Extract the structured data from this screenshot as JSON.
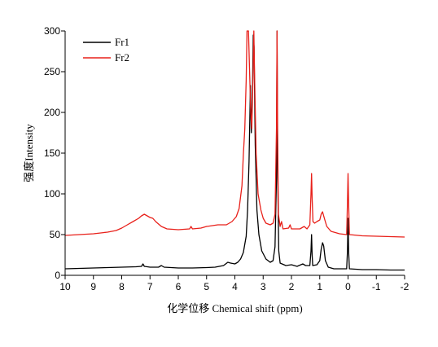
{
  "chart_data": {
    "type": "line",
    "title": "",
    "xlabel": "化学位移 Chemical shift (ppm)",
    "ylabel": "强度Intensity",
    "x_reversed": true,
    "xlim": [
      10,
      -2
    ],
    "ylim": [
      0,
      300
    ],
    "xticks": [
      "10",
      "9",
      "8",
      "7",
      "6",
      "5",
      "4",
      "3",
      "2",
      "1",
      "0",
      "-1",
      "-2"
    ],
    "yticks": [
      "0",
      "50",
      "100",
      "150",
      "200",
      "250",
      "300"
    ],
    "grid": false,
    "legend_position": "top-left",
    "series": [
      {
        "name": "Fr1",
        "color": "#000000",
        "points": [
          [
            10.0,
            8
          ],
          [
            9.5,
            8.5
          ],
          [
            9.0,
            9
          ],
          [
            8.5,
            9.5
          ],
          [
            8.0,
            10
          ],
          [
            7.5,
            10.5
          ],
          [
            7.3,
            11
          ],
          [
            7.25,
            14
          ],
          [
            7.2,
            11
          ],
          [
            7.0,
            10
          ],
          [
            6.7,
            10
          ],
          [
            6.6,
            12
          ],
          [
            6.5,
            10
          ],
          [
            6.0,
            9
          ],
          [
            5.5,
            9
          ],
          [
            5.0,
            9.5
          ],
          [
            4.7,
            10
          ],
          [
            4.4,
            12
          ],
          [
            4.25,
            16
          ],
          [
            4.15,
            15
          ],
          [
            4.0,
            14
          ],
          [
            3.9,
            16
          ],
          [
            3.8,
            20
          ],
          [
            3.7,
            28
          ],
          [
            3.6,
            48
          ],
          [
            3.55,
            80
          ],
          [
            3.5,
            140
          ],
          [
            3.45,
            233
          ],
          [
            3.42,
            175
          ],
          [
            3.38,
            220
          ],
          [
            3.35,
            295
          ],
          [
            3.32,
            280
          ],
          [
            3.28,
            160
          ],
          [
            3.22,
            80
          ],
          [
            3.15,
            50
          ],
          [
            3.05,
            30
          ],
          [
            2.9,
            20
          ],
          [
            2.75,
            16
          ],
          [
            2.65,
            18
          ],
          [
            2.58,
            35
          ],
          [
            2.53,
            120
          ],
          [
            2.51,
            300
          ],
          [
            2.49,
            130
          ],
          [
            2.45,
            30
          ],
          [
            2.4,
            15
          ],
          [
            2.2,
            12
          ],
          [
            2.0,
            13
          ],
          [
            1.8,
            11
          ],
          [
            1.6,
            14
          ],
          [
            1.5,
            12
          ],
          [
            1.35,
            12
          ],
          [
            1.31,
            30
          ],
          [
            1.29,
            50
          ],
          [
            1.27,
            25
          ],
          [
            1.25,
            12
          ],
          [
            1.1,
            13
          ],
          [
            1.0,
            18
          ],
          [
            0.95,
            32
          ],
          [
            0.9,
            40
          ],
          [
            0.86,
            36
          ],
          [
            0.8,
            18
          ],
          [
            0.7,
            10
          ],
          [
            0.5,
            8
          ],
          [
            0.3,
            8
          ],
          [
            0.05,
            8
          ],
          [
            0.02,
            30
          ],
          [
            0.0,
            70
          ],
          [
            -0.02,
            30
          ],
          [
            -0.05,
            8
          ],
          [
            -0.5,
            7
          ],
          [
            -1.0,
            7
          ],
          [
            -1.5,
            6.5
          ],
          [
            -2.0,
            6.5
          ]
        ]
      },
      {
        "name": "Fr2",
        "color": "#e8201a",
        "points": [
          [
            10.0,
            49
          ],
          [
            9.5,
            50
          ],
          [
            9.0,
            51
          ],
          [
            8.5,
            53
          ],
          [
            8.2,
            55
          ],
          [
            8.0,
            58
          ],
          [
            7.8,
            62
          ],
          [
            7.6,
            66
          ],
          [
            7.4,
            70
          ],
          [
            7.3,
            73
          ],
          [
            7.2,
            75
          ],
          [
            7.1,
            73
          ],
          [
            7.0,
            71
          ],
          [
            6.9,
            70
          ],
          [
            6.8,
            66
          ],
          [
            6.6,
            60
          ],
          [
            6.4,
            57
          ],
          [
            6.0,
            56
          ],
          [
            5.6,
            57
          ],
          [
            5.55,
            60
          ],
          [
            5.5,
            57
          ],
          [
            5.2,
            58
          ],
          [
            5.0,
            60
          ],
          [
            4.6,
            62
          ],
          [
            4.3,
            62
          ],
          [
            4.1,
            66
          ],
          [
            3.95,
            72
          ],
          [
            3.85,
            82
          ],
          [
            3.75,
            110
          ],
          [
            3.7,
            148
          ],
          [
            3.65,
            180
          ],
          [
            3.6,
            240
          ],
          [
            3.57,
            300
          ],
          [
            3.52,
            300
          ],
          [
            3.48,
            250
          ],
          [
            3.44,
            200
          ],
          [
            3.4,
            180
          ],
          [
            3.36,
            240
          ],
          [
            3.33,
            300
          ],
          [
            3.3,
            240
          ],
          [
            3.25,
            150
          ],
          [
            3.18,
            100
          ],
          [
            3.08,
            80
          ],
          [
            3.0,
            70
          ],
          [
            2.9,
            64
          ],
          [
            2.75,
            62
          ],
          [
            2.65,
            64
          ],
          [
            2.58,
            75
          ],
          [
            2.53,
            180
          ],
          [
            2.51,
            300
          ],
          [
            2.49,
            180
          ],
          [
            2.46,
            75
          ],
          [
            2.4,
            60
          ],
          [
            2.35,
            66
          ],
          [
            2.3,
            57
          ],
          [
            2.1,
            58
          ],
          [
            2.05,
            62
          ],
          [
            2.0,
            57
          ],
          [
            1.7,
            57
          ],
          [
            1.55,
            60
          ],
          [
            1.45,
            57
          ],
          [
            1.35,
            62
          ],
          [
            1.31,
            100
          ],
          [
            1.29,
            125
          ],
          [
            1.27,
            95
          ],
          [
            1.24,
            66
          ],
          [
            1.18,
            64
          ],
          [
            1.1,
            66
          ],
          [
            1.0,
            68
          ],
          [
            0.95,
            75
          ],
          [
            0.9,
            78
          ],
          [
            0.87,
            74
          ],
          [
            0.82,
            68
          ],
          [
            0.75,
            60
          ],
          [
            0.6,
            54
          ],
          [
            0.3,
            51
          ],
          [
            0.05,
            50
          ],
          [
            0.02,
            90
          ],
          [
            0.0,
            125
          ],
          [
            -0.02,
            90
          ],
          [
            -0.05,
            50
          ],
          [
            -0.5,
            48.5
          ],
          [
            -1.0,
            48
          ],
          [
            -1.5,
            47.5
          ],
          [
            -2.0,
            47
          ]
        ]
      }
    ]
  }
}
